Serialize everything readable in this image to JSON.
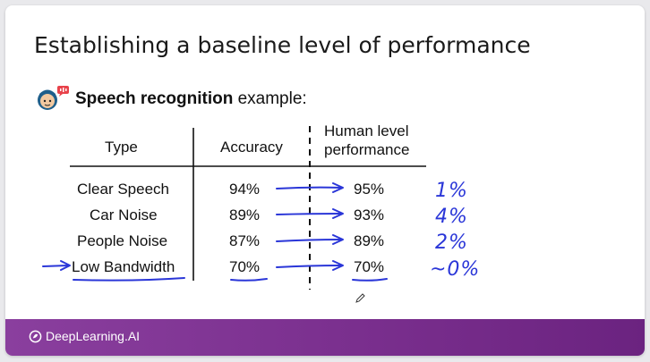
{
  "slide": {
    "title": "Establishing a baseline level of performance",
    "subtitle_bold": "Speech recognition",
    "subtitle_rest": " example:",
    "avatar_icon": "speaking-person-icon"
  },
  "table": {
    "headers": {
      "type": "Type",
      "accuracy": "Accuracy",
      "human_line1": "Human level",
      "human_line2": "performance"
    },
    "rows": [
      {
        "type": "Clear Speech",
        "accuracy": "94%",
        "human": "95%"
      },
      {
        "type": "Car Noise",
        "accuracy": "89%",
        "human": "93%"
      },
      {
        "type": "People Noise",
        "accuracy": "87%",
        "human": "89%"
      },
      {
        "type": "Low Bandwidth",
        "accuracy": "70%",
        "human": "70%"
      }
    ]
  },
  "annotations": {
    "gaps": [
      "1%",
      "4%",
      "2%",
      "~0%"
    ],
    "ink_color": "#2a36d8"
  },
  "footer": {
    "brand": "DeepLearning.AI",
    "brand_icon": "deeplearning-logo-icon",
    "background": "#7a2f8e"
  }
}
